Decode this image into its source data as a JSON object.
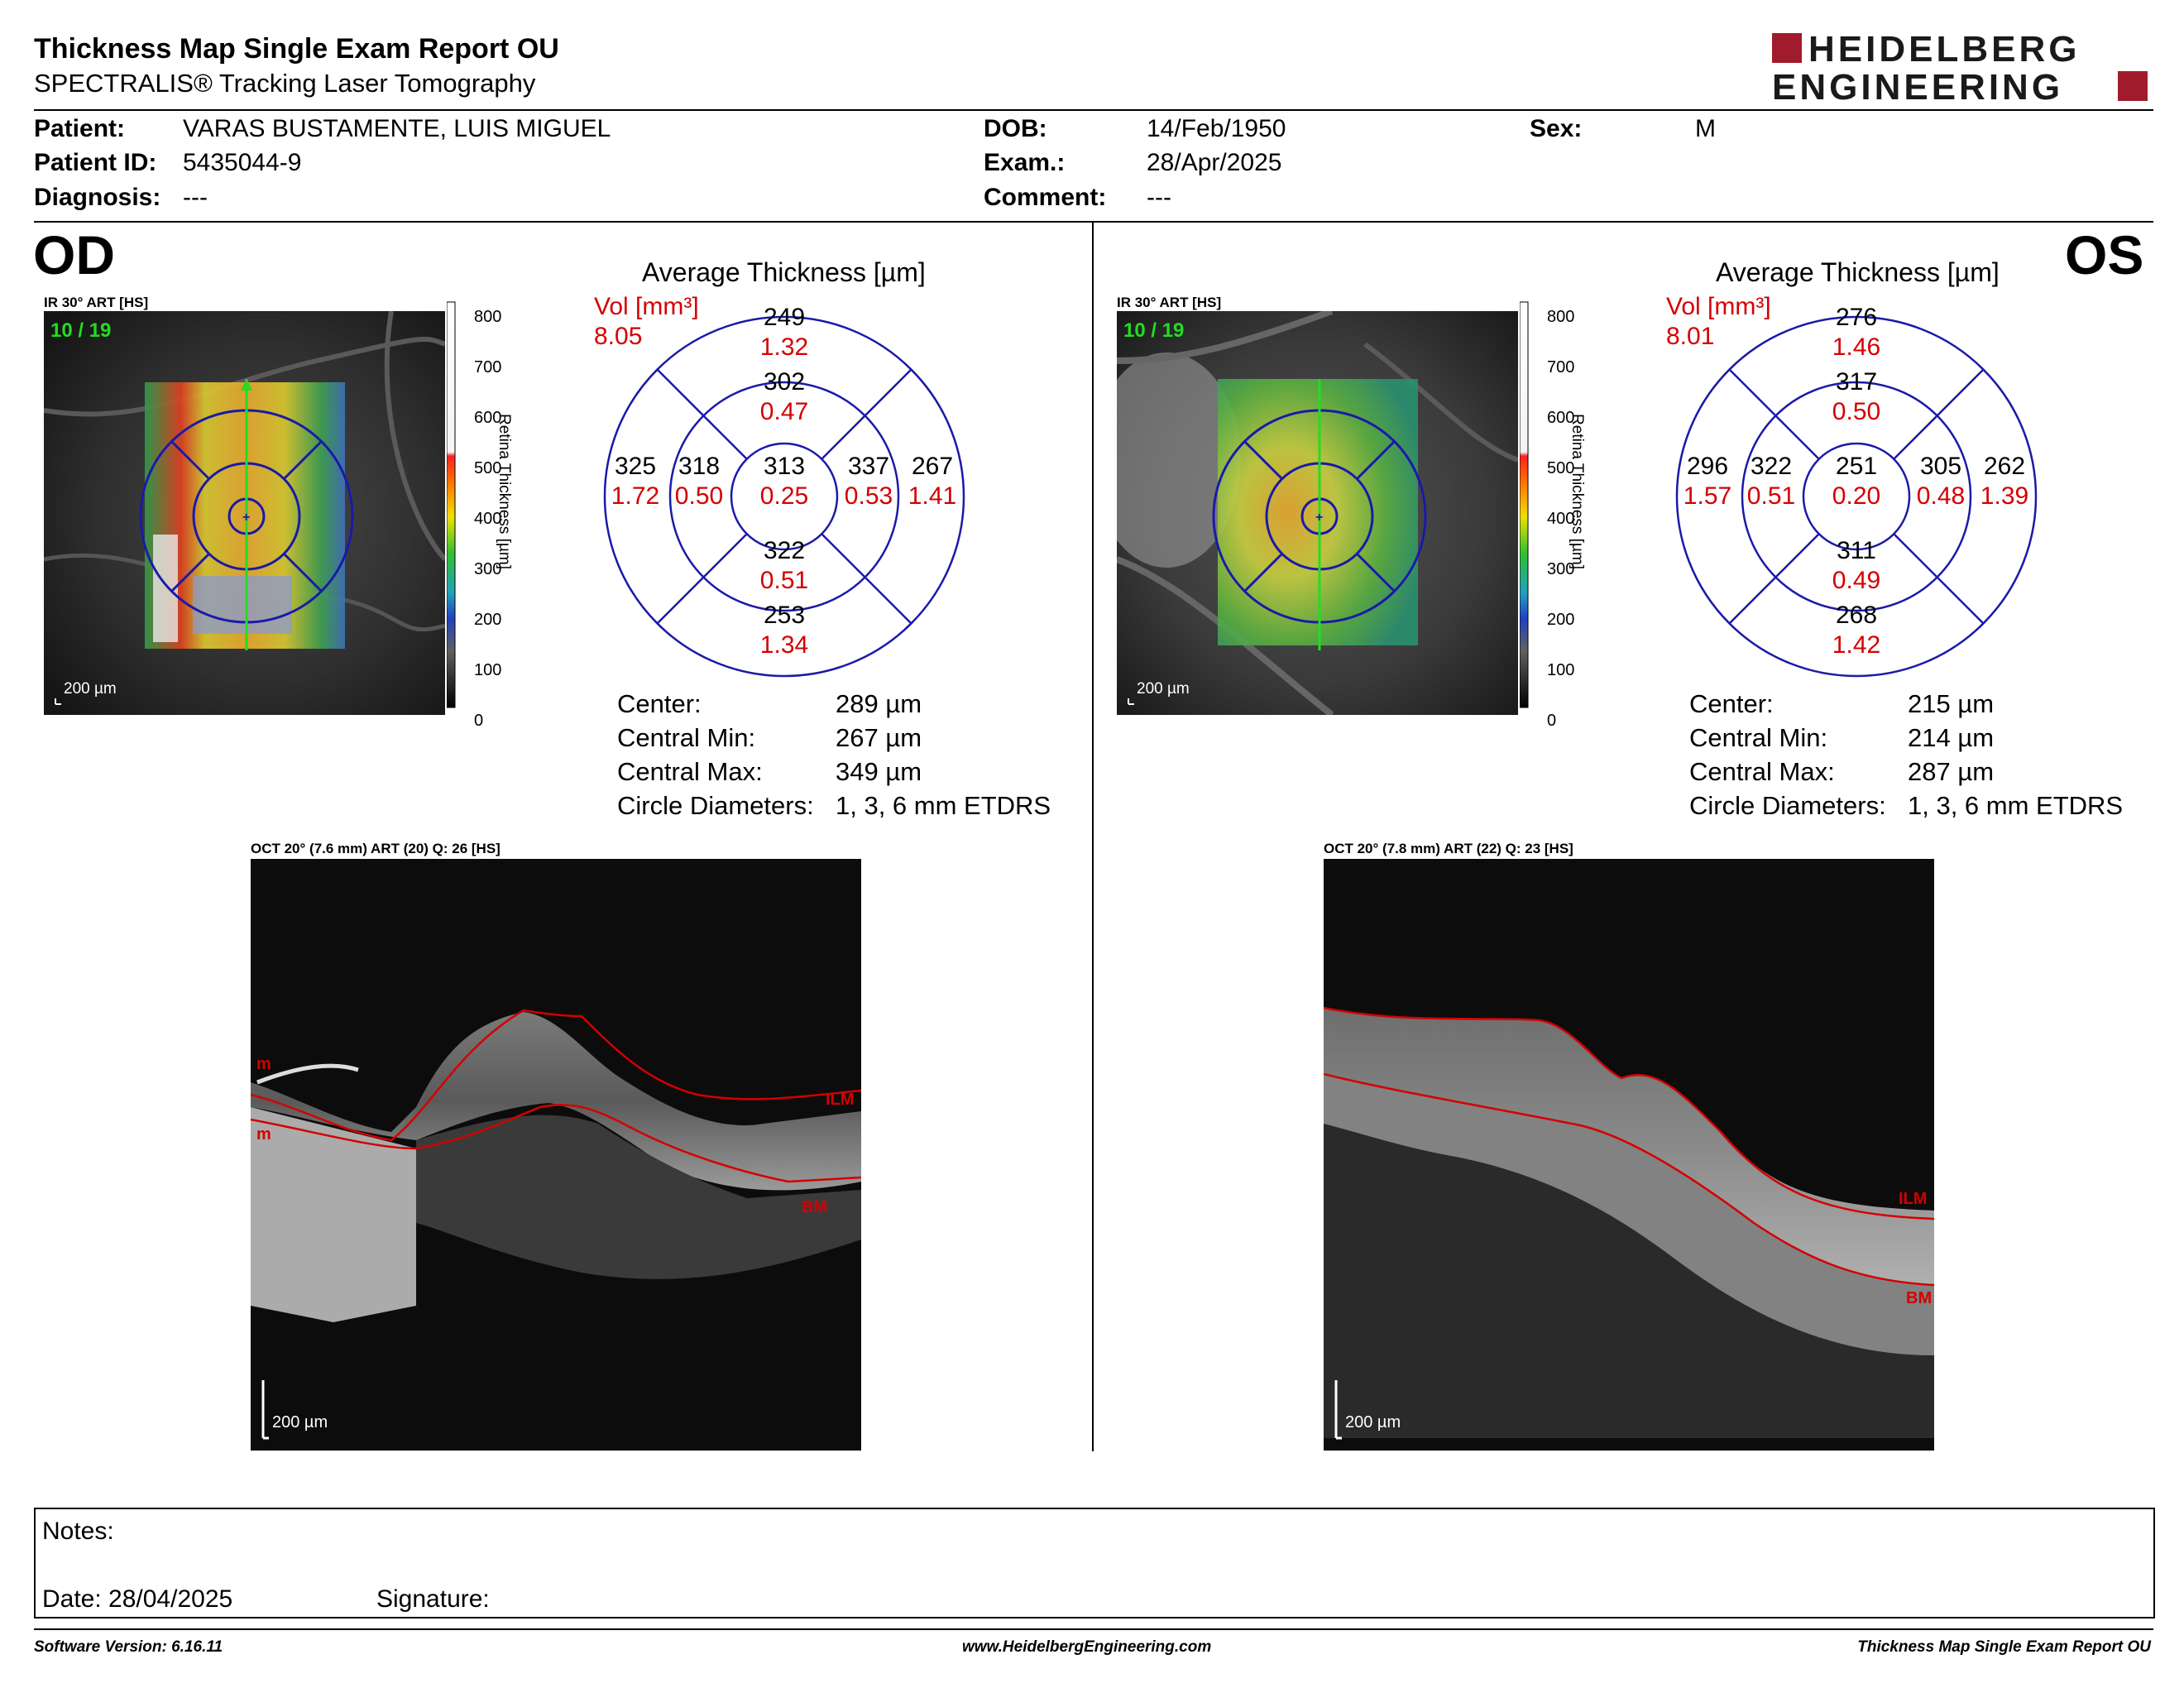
{
  "header": {
    "title": "Thickness Map Single Exam Report OU",
    "subtitle": "SPECTRALIS® Tracking Laser Tomography",
    "logo_line1": "HEIDELBERG",
    "logo_line2": "ENGINEERING"
  },
  "patient": {
    "patient_label": "Patient:",
    "patient_value": "VARAS BUSTAMENTE, LUIS MIGUEL",
    "id_label": "Patient ID:",
    "id_value": "5435044-9",
    "diagnosis_label": "Diagnosis:",
    "diagnosis_value": "---",
    "dob_label": "DOB:",
    "dob_value": "14/Feb/1950",
    "exam_label": "Exam.:",
    "exam_value": "28/Apr/2025",
    "comment_label": "Comment:",
    "comment_value": "---",
    "sex_label": "Sex:",
    "sex_value": "M"
  },
  "colorbar": {
    "ticks": [
      "800",
      "700",
      "600",
      "500",
      "400",
      "300",
      "200",
      "100",
      "0"
    ],
    "label": "Retina  Thickness [µm]"
  },
  "od": {
    "eye": "OD",
    "ir_caption": "IR 30° ART [HS]",
    "frame": "10 / 19",
    "scale": "200 µm",
    "avg_title": "Average Thickness [µm]",
    "vol_label": "Vol [mm³]",
    "vol_value": "8.05",
    "sectors": {
      "outer_sup": {
        "thk": "249",
        "vol": "1.32"
      },
      "inner_sup": {
        "thk": "302",
        "vol": "0.47"
      },
      "outer_temp": {
        "thk": "325",
        "vol": "1.72"
      },
      "inner_temp": {
        "thk": "318",
        "vol": "0.50"
      },
      "center": {
        "thk": "313",
        "vol": "0.25"
      },
      "inner_nas": {
        "thk": "337",
        "vol": "0.53"
      },
      "outer_nas": {
        "thk": "267",
        "vol": "1.41"
      },
      "inner_inf": {
        "thk": "322",
        "vol": "0.51"
      },
      "outer_inf": {
        "thk": "253",
        "vol": "1.34"
      }
    },
    "stats": {
      "center_label": "Center:",
      "center_value": "289 µm",
      "min_label": "Central Min:",
      "min_value": "267 µm",
      "max_label": "Central Max:",
      "max_value": "349 µm",
      "circ_label": "Circle Diameters:",
      "circ_value": "1, 3, 6 mm ETDRS"
    },
    "oct_caption": "OCT 20° (7.6 mm) ART (20) Q: 26 [HS]",
    "oct_scale": "200 µm",
    "layer_ilm": "ILM",
    "layer_bm": "BM",
    "layer_m1": "m",
    "layer_m2": "m"
  },
  "os": {
    "eye": "OS",
    "ir_caption": "IR 30° ART [HS]",
    "frame": "10 / 19",
    "scale": "200 µm",
    "avg_title": "Average Thickness [µm]",
    "vol_label": "Vol [mm³]",
    "vol_value": "8.01",
    "sectors": {
      "outer_sup": {
        "thk": "276",
        "vol": "1.46"
      },
      "inner_sup": {
        "thk": "317",
        "vol": "0.50"
      },
      "outer_temp": {
        "thk": "296",
        "vol": "1.57"
      },
      "inner_temp": {
        "thk": "322",
        "vol": "0.51"
      },
      "center": {
        "thk": "251",
        "vol": "0.20"
      },
      "inner_nas": {
        "thk": "305",
        "vol": "0.48"
      },
      "outer_nas": {
        "thk": "262",
        "vol": "1.39"
      },
      "inner_inf": {
        "thk": "311",
        "vol": "0.49"
      },
      "outer_inf": {
        "thk": "268",
        "vol": "1.42"
      }
    },
    "stats": {
      "center_label": "Center:",
      "center_value": "215 µm",
      "min_label": "Central Min:",
      "min_value": "214 µm",
      "max_label": "Central Max:",
      "max_value": "287 µm",
      "circ_label": "Circle Diameters:",
      "circ_value": "1, 3, 6 mm ETDRS"
    },
    "oct_caption": "OCT 20° (7.8 mm) ART (22) Q: 23 [HS]",
    "oct_scale": "200 µm",
    "layer_ilm": "ILM",
    "layer_bm": "BM"
  },
  "notes": {
    "notes_label": "Notes:",
    "date_label": "Date: 28/04/2025",
    "signature_label": "Signature:"
  },
  "footer": {
    "software": "Software Version: 6.16.11",
    "website": "www.HeidelbergEngineering.com",
    "report": "Thickness Map Single Exam Report OU"
  },
  "colors": {
    "logo_red": "#a01c2c",
    "circle_blue": "#1a1aa8",
    "value_red": "#d40000",
    "frame_green": "#22dd22"
  }
}
